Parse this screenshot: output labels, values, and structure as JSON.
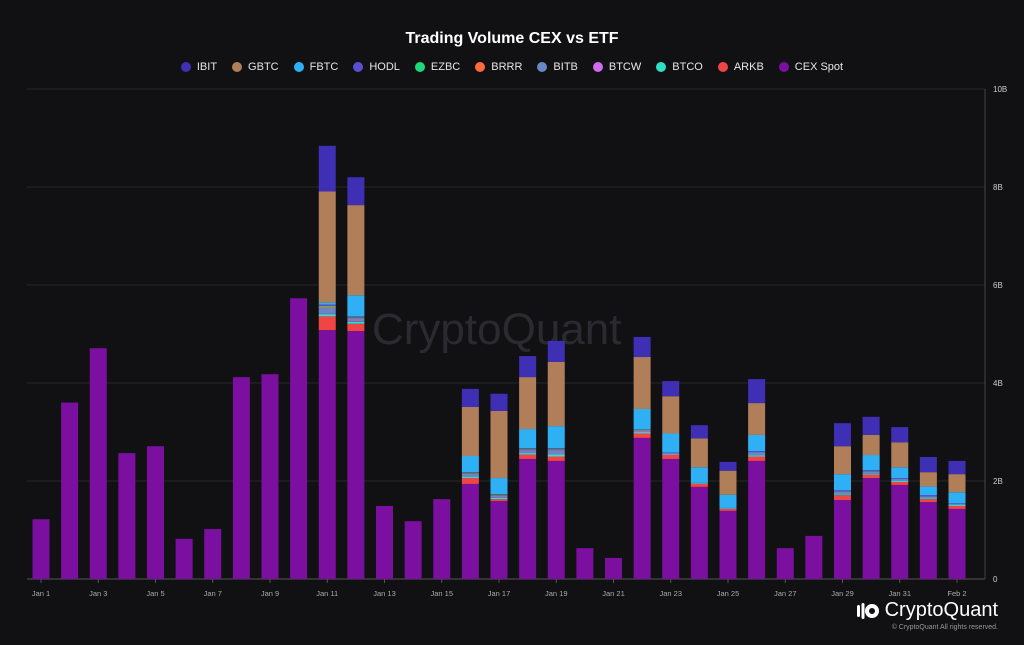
{
  "chart_data": {
    "type": "bar",
    "stacked": true,
    "title": "Trading Volume CEX vs ETF",
    "categories": [
      "Jan 1",
      "Jan 2",
      "Jan 3",
      "Jan 4",
      "Jan 5",
      "Jan 6",
      "Jan 7",
      "Jan 8",
      "Jan 9",
      "Jan 10",
      "Jan 11",
      "Jan 12",
      "Jan 13",
      "Jan 14",
      "Jan 15",
      "Jan 16",
      "Jan 17",
      "Jan 18",
      "Jan 19",
      "Jan 20",
      "Jan 21",
      "Jan 22",
      "Jan 23",
      "Jan 24",
      "Jan 25",
      "Jan 26",
      "Jan 27",
      "Jan 28",
      "Jan 29",
      "Jan 30",
      "Jan 31",
      "Feb 1",
      "Feb 2"
    ],
    "x_tick_labels": [
      "Jan 1",
      "Jan 3",
      "Jan 5",
      "Jan 7",
      "Jan 9",
      "Jan 11",
      "Jan 13",
      "Jan 15",
      "Jan 17",
      "Jan 19",
      "Jan 21",
      "Jan 23",
      "Jan 25",
      "Jan 27",
      "Jan 29",
      "Jan 31",
      "Feb 2"
    ],
    "y_tick_labels": [
      "0",
      "2B",
      "4B",
      "6B",
      "8B",
      "10B"
    ],
    "y_ticks": [
      0,
      2,
      4,
      6,
      8,
      10
    ],
    "ylim": [
      0,
      10
    ],
    "y_unit": "billions",
    "y_axis_side": "right",
    "grid": true,
    "legend_position": "top",
    "series": [
      {
        "name": "IBIT",
        "color": "#3f2fb5",
        "values": [
          0,
          0,
          0,
          0,
          0,
          0,
          0,
          0,
          0,
          0,
          0.93,
          0.57,
          0,
          0,
          0,
          0.37,
          0.35,
          0.43,
          0.43,
          0,
          0,
          0.41,
          0.31,
          0.27,
          0.18,
          0.49,
          0,
          0,
          0.47,
          0.37,
          0.31,
          0.31,
          0.27
        ]
      },
      {
        "name": "GBTC",
        "color": "#b07f5a",
        "values": [
          0,
          0,
          0,
          0,
          0,
          0,
          0,
          0,
          0,
          0,
          2.27,
          1.84,
          0,
          0,
          0,
          1.0,
          1.37,
          1.06,
          1.31,
          0,
          0,
          1.06,
          0.76,
          0.59,
          0.49,
          0.65,
          0,
          0,
          0.57,
          0.41,
          0.51,
          0.29,
          0.37
        ]
      },
      {
        "name": "FBTC",
        "color": "#2fb0f5",
        "values": [
          0,
          0,
          0,
          0,
          0,
          0,
          0,
          0,
          0,
          0,
          0.04,
          0.43,
          0,
          0,
          0,
          0.33,
          0.33,
          0.39,
          0.45,
          0,
          0,
          0.41,
          0.39,
          0.31,
          0.27,
          0.33,
          0,
          0,
          0.33,
          0.31,
          0.22,
          0.18,
          0.22
        ]
      },
      {
        "name": "HODL",
        "color": "#5a4fd0",
        "values": [
          0,
          0,
          0,
          0,
          0,
          0,
          0,
          0,
          0,
          0,
          0.03,
          0.02,
          0,
          0,
          0,
          0.01,
          0.01,
          0.02,
          0.02,
          0,
          0,
          0.01,
          0.01,
          0,
          0,
          0.02,
          0,
          0,
          0.02,
          0.02,
          0.02,
          0.02,
          0.01
        ]
      },
      {
        "name": "EZBC",
        "color": "#1ed97a",
        "values": [
          0,
          0,
          0,
          0,
          0,
          0,
          0,
          0,
          0,
          0,
          0.02,
          0.01,
          0,
          0,
          0,
          0.01,
          0.01,
          0.01,
          0.01,
          0,
          0,
          0.01,
          0,
          0,
          0,
          0,
          0,
          0,
          0,
          0,
          0,
          0,
          0
        ]
      },
      {
        "name": "BRRR",
        "color": "#ff6a3d",
        "values": [
          0,
          0,
          0,
          0,
          0,
          0,
          0,
          0,
          0,
          0,
          0.02,
          0.01,
          0,
          0,
          0,
          0.01,
          0.01,
          0.01,
          0.01,
          0,
          0,
          0.01,
          0,
          0,
          0,
          0,
          0,
          0,
          0,
          0,
          0,
          0,
          0
        ]
      },
      {
        "name": "BITB",
        "color": "#6b86c4",
        "values": [
          0,
          0,
          0,
          0,
          0,
          0,
          0,
          0,
          0,
          0,
          0.12,
          0.06,
          0,
          0,
          0,
          0.05,
          0.03,
          0.05,
          0.08,
          0,
          0,
          0.03,
          0.02,
          0.02,
          0.01,
          0.07,
          0,
          0,
          0.06,
          0.05,
          0.04,
          0.04,
          0.03
        ]
      },
      {
        "name": "BTCW",
        "color": "#d06bf0",
        "values": [
          0,
          0,
          0,
          0,
          0,
          0,
          0,
          0,
          0,
          0,
          0.01,
          0.01,
          0,
          0,
          0,
          0.01,
          0.01,
          0.01,
          0.01,
          0,
          0,
          0.01,
          0.01,
          0,
          0,
          0,
          0,
          0,
          0,
          0,
          0,
          0,
          0
        ]
      },
      {
        "name": "BTCO",
        "color": "#2ee0c8",
        "values": [
          0,
          0,
          0,
          0,
          0,
          0,
          0,
          0,
          0,
          0,
          0.04,
          0.04,
          0,
          0,
          0,
          0.03,
          0.03,
          0.03,
          0.04,
          0,
          0,
          0.02,
          0.01,
          0.01,
          0.01,
          0.02,
          0,
          0,
          0.02,
          0.02,
          0.02,
          0.02,
          0.02
        ]
      },
      {
        "name": "ARKB",
        "color": "#f04545",
        "values": [
          0,
          0,
          0,
          0,
          0,
          0,
          0,
          0,
          0,
          0,
          0.28,
          0.15,
          0,
          0,
          0,
          0.12,
          0.04,
          0.09,
          0.09,
          0,
          0,
          0.09,
          0.08,
          0.06,
          0.04,
          0.09,
          0,
          0,
          0.1,
          0.07,
          0.06,
          0.06,
          0.06
        ]
      },
      {
        "name": "CEX Spot",
        "color": "#7a0fa0",
        "values": [
          1.22,
          3.6,
          4.71,
          2.57,
          2.71,
          0.82,
          1.02,
          4.12,
          4.18,
          5.73,
          5.08,
          5.06,
          1.49,
          1.18,
          1.63,
          1.94,
          1.59,
          2.45,
          2.41,
          0.63,
          0.43,
          2.88,
          2.45,
          1.88,
          1.39,
          2.41,
          0.63,
          0.88,
          1.61,
          2.06,
          1.92,
          1.57,
          1.43
        ]
      }
    ]
  },
  "watermark": "CryptoQuant",
  "brand": {
    "name": "CryptoQuant",
    "copyright": "© CryptoQuant All rights reserved."
  }
}
